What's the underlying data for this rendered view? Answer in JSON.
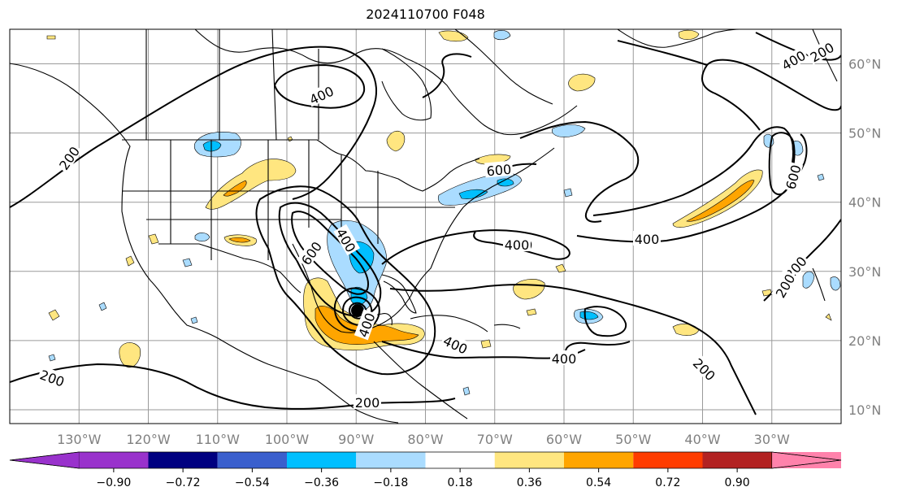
{
  "title": "2024110700 F048",
  "map": {
    "lon_range": [
      -140,
      -20
    ],
    "lat_range": [
      8,
      65
    ],
    "lon_tick_labels": [
      "130°W",
      "120°W",
      "110°W",
      "100°W",
      "90°W",
      "80°W",
      "70°W",
      "60°W",
      "50°W",
      "40°W",
      "30°W"
    ],
    "lat_tick_labels": [
      "10°N",
      "20°N",
      "30°N",
      "40°N",
      "50°N",
      "60°N"
    ],
    "contour_labels": [
      "400",
      "200",
      "200",
      "400",
      "600",
      "400",
      "600",
      "400",
      "400",
      "400",
      "600",
      "200",
      "400",
      "200",
      "200",
      "400",
      "200",
      "400",
      "200"
    ],
    "fill_colors": {
      "light_yellow": "#ffe680",
      "orange": "#ffa500",
      "light_blue": "#aadcff",
      "cyan_blue": "#00bfff"
    }
  },
  "colorbar": {
    "tick_labels": [
      "−0.90",
      "−0.72",
      "−0.54",
      "−0.36",
      "−0.18",
      "0.18",
      "0.36",
      "0.54",
      "0.72",
      "0.90"
    ],
    "colors": [
      "#9932cc",
      "#9932cc",
      "#000080",
      "#3a5fcd",
      "#00bfff",
      "#aadcff",
      "#ffffff",
      "#ffe680",
      "#ffa500",
      "#ff3c00",
      "#b22222",
      "#ff82ab",
      "#ff82ab"
    ]
  }
}
